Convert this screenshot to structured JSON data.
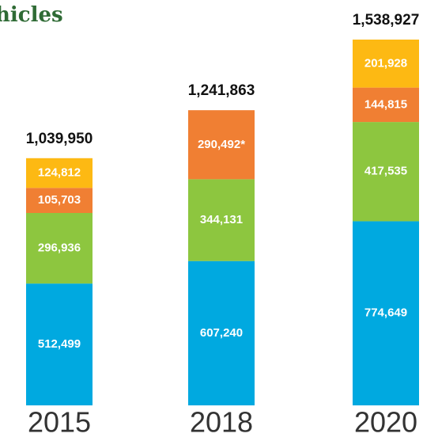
{
  "chart_data": {
    "type": "stacked_bar",
    "title": "hicles",
    "categories": [
      "2015",
      "2018",
      "2020"
    ],
    "series": [
      {
        "color": "#00a9e0",
        "values": [
          512499,
          607240,
          774649
        ],
        "value_labels": [
          "512,499",
          "607,240",
          "774,649"
        ]
      },
      {
        "color": "#8dc63f",
        "values": [
          296936,
          344131,
          417535
        ],
        "value_labels": [
          "296,936",
          "344,131",
          "417,535"
        ]
      },
      {
        "color": "#f07f33",
        "values": [
          105703,
          290492,
          144815
        ],
        "value_labels": [
          "105,703",
          "290,492*",
          "144,815"
        ]
      },
      {
        "color": "#fdb913",
        "values": [
          124812,
          null,
          201928
        ],
        "value_labels": [
          "124,812",
          null,
          "201,928"
        ]
      }
    ],
    "totals": [
      1039950,
      1241863,
      1538927
    ],
    "totals_labels": [
      "1,039,950",
      "1,241,863",
      "1,538,927"
    ]
  }
}
